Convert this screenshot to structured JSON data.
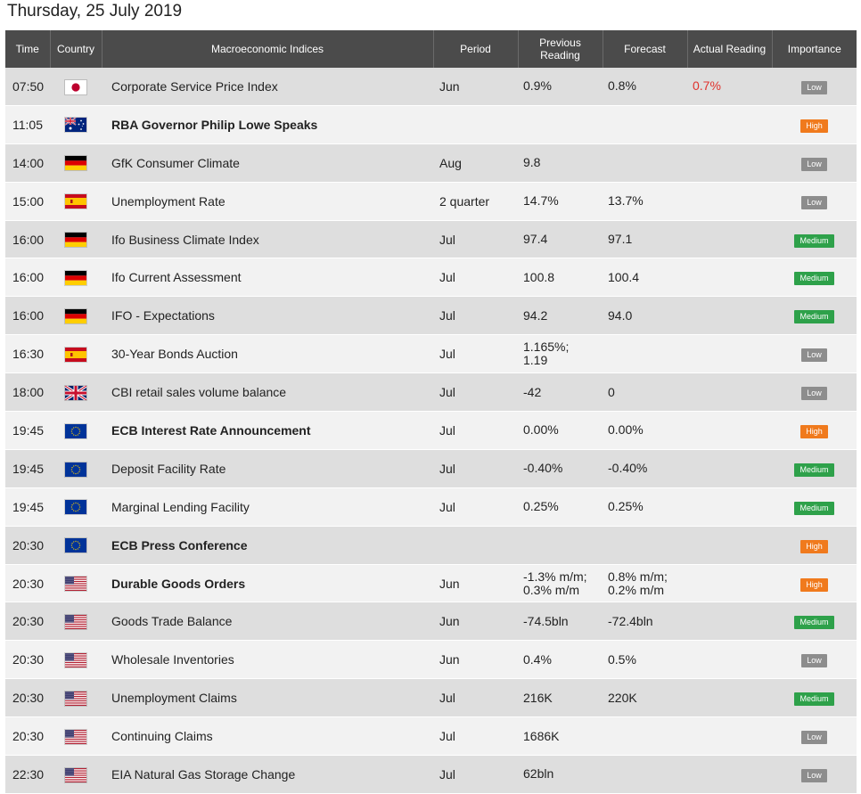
{
  "title": "Thursday, 25 July 2019",
  "columns": {
    "time": "Time",
    "country": "Country",
    "indices": "Macroeconomic Indices",
    "period": "Period",
    "previous_1": "Previous",
    "previous_2": "Reading",
    "forecast": "Forecast",
    "actual": "Actual Reading",
    "importance": "Importance"
  },
  "colors": {
    "low": "#8d8d8d",
    "medium": "#2ea14a",
    "high": "#f07a1d",
    "actual_red": "#e0322d",
    "header": "#4b4b4b"
  },
  "rows": [
    {
      "time": "07:50",
      "country": "japan-flag-icon",
      "name": "Corporate Service Price Index",
      "bold": false,
      "period": "Jun",
      "previous": [
        "0.9%"
      ],
      "forecast": [
        "0.8%"
      ],
      "actual": "0.7%",
      "importance": "Low"
    },
    {
      "time": "11:05",
      "country": "australia-flag-icon",
      "name": "RBA Governor Philip Lowe Speaks",
      "bold": true,
      "period": "",
      "previous": [],
      "forecast": [],
      "actual": "",
      "importance": "High"
    },
    {
      "time": "14:00",
      "country": "germany-flag-icon",
      "name": "GfK Consumer Climate",
      "bold": false,
      "period": "Aug",
      "previous": [
        "9.8"
      ],
      "forecast": [],
      "actual": "",
      "importance": "Low"
    },
    {
      "time": "15:00",
      "country": "spain-flag-icon",
      "name": "Unemployment Rate",
      "bold": false,
      "period": "2 quarter",
      "previous": [
        "14.7%"
      ],
      "forecast": [
        "13.7%"
      ],
      "actual": "",
      "importance": "Low"
    },
    {
      "time": "16:00",
      "country": "germany-flag-icon",
      "name": "Ifo Business Climate Index",
      "bold": false,
      "period": "Jul",
      "previous": [
        "97.4"
      ],
      "forecast": [
        "97.1"
      ],
      "actual": "",
      "importance": "Medium"
    },
    {
      "time": "16:00",
      "country": "germany-flag-icon",
      "name": "Ifo Current Assessment",
      "bold": false,
      "period": "Jul",
      "previous": [
        "100.8"
      ],
      "forecast": [
        "100.4"
      ],
      "actual": "",
      "importance": "Medium"
    },
    {
      "time": "16:00",
      "country": "germany-flag-icon",
      "name": "IFO - Expectations",
      "bold": false,
      "period": "Jul",
      "previous": [
        "94.2"
      ],
      "forecast": [
        "94.0"
      ],
      "actual": "",
      "importance": "Medium"
    },
    {
      "time": "16:30",
      "country": "spain-flag-icon",
      "name": "30-Year Bonds Auction",
      "bold": false,
      "period": "Jul",
      "previous": [
        "1.165%;",
        "1.19"
      ],
      "forecast": [],
      "actual": "",
      "importance": "Low"
    },
    {
      "time": "18:00",
      "country": "uk-flag-icon",
      "name": "CBI retail sales volume balance",
      "bold": false,
      "period": "Jul",
      "previous": [
        "-42"
      ],
      "forecast": [
        "0"
      ],
      "actual": "",
      "importance": "Low"
    },
    {
      "time": "19:45",
      "country": "eu-flag-icon",
      "name": "ECB Interest Rate Announcement",
      "bold": true,
      "period": "Jul",
      "previous": [
        "0.00%"
      ],
      "forecast": [
        "0.00%"
      ],
      "actual": "",
      "importance": "High"
    },
    {
      "time": "19:45",
      "country": "eu-flag-icon",
      "name": "Deposit Facility Rate",
      "bold": false,
      "period": "Jul",
      "previous": [
        "-0.40%"
      ],
      "forecast": [
        "-0.40%"
      ],
      "actual": "",
      "importance": "Medium"
    },
    {
      "time": "19:45",
      "country": "eu-flag-icon",
      "name": "Marginal Lending Facility",
      "bold": false,
      "period": "Jul",
      "previous": [
        "0.25%"
      ],
      "forecast": [
        "0.25%"
      ],
      "actual": "",
      "importance": "Medium"
    },
    {
      "time": "20:30",
      "country": "eu-flag-icon",
      "name": "ECB Press Conference",
      "bold": true,
      "period": "",
      "previous": [],
      "forecast": [],
      "actual": "",
      "importance": "High"
    },
    {
      "time": "20:30",
      "country": "usa-flag-icon",
      "name": "Durable Goods Orders",
      "bold": true,
      "period": "Jun",
      "previous": [
        "-1.3% m/m;",
        "0.3% m/m"
      ],
      "forecast": [
        "0.8% m/m;",
        "0.2% m/m"
      ],
      "actual": "",
      "importance": "High"
    },
    {
      "time": "20:30",
      "country": "usa-flag-icon",
      "name": "Goods Trade Balance",
      "bold": false,
      "period": "Jun",
      "previous": [
        "-74.5bln"
      ],
      "forecast": [
        "-72.4bln"
      ],
      "actual": "",
      "importance": "Medium"
    },
    {
      "time": "20:30",
      "country": "usa-flag-icon",
      "name": "Wholesale Inventories",
      "bold": false,
      "period": "Jun",
      "previous": [
        "0.4%"
      ],
      "forecast": [
        "0.5%"
      ],
      "actual": "",
      "importance": "Low"
    },
    {
      "time": "20:30",
      "country": "usa-flag-icon",
      "name": "Unemployment Claims",
      "bold": false,
      "period": "Jul",
      "previous": [
        "216K"
      ],
      "forecast": [
        "220K"
      ],
      "actual": "",
      "importance": "Medium"
    },
    {
      "time": "20:30",
      "country": "usa-flag-icon",
      "name": "Continuing Claims",
      "bold": false,
      "period": "Jul",
      "previous": [
        "1686K"
      ],
      "forecast": [],
      "actual": "",
      "importance": "Low"
    },
    {
      "time": "22:30",
      "country": "usa-flag-icon",
      "name": "EIA Natural Gas Storage Change",
      "bold": false,
      "period": "Jul",
      "previous": [
        "62bln"
      ],
      "forecast": [],
      "actual": "",
      "importance": "Low"
    }
  ]
}
